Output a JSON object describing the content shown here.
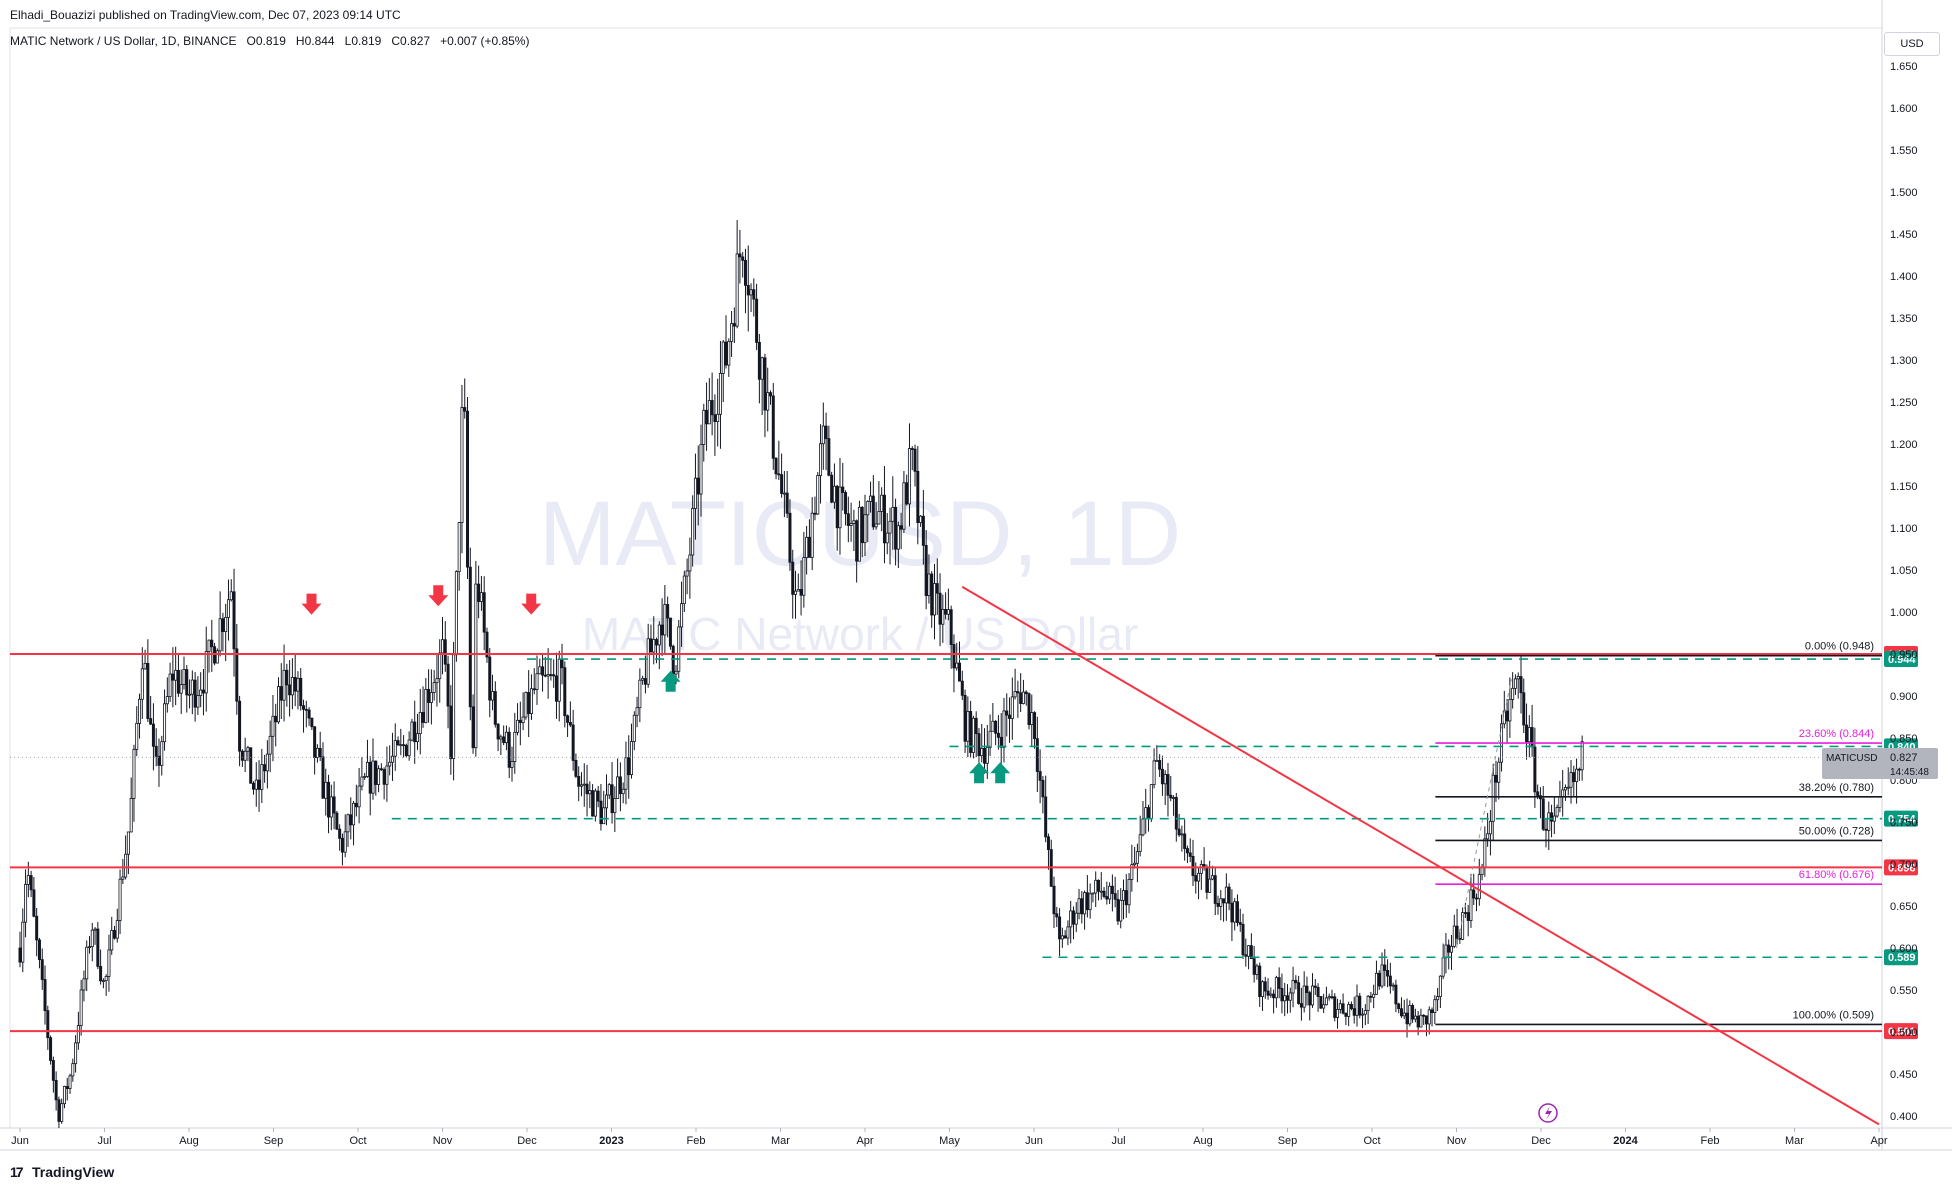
{
  "header": {
    "published": "Elhadi_Bouazizi published on TradingView.com, Dec 07, 2023 09:14 UTC"
  },
  "symbol": {
    "title": "MATIC Network / US Dollar, 1D, BINANCE",
    "o_label": "O",
    "o": "0.819",
    "h_label": "H",
    "h": "0.844",
    "l_label": "L",
    "l": "0.819",
    "c_label": "C",
    "c": "0.827",
    "change": "+0.007 (+0.85%)"
  },
  "watermark": {
    "line1": "MATICUSD, 1D",
    "line2": "MATIC Network / US Dollar"
  },
  "currency": "USD",
  "price_tag": {
    "symbol": "MATICUSD",
    "price": "0.827",
    "countdown": "14:45:48"
  },
  "brand": {
    "name": "TradingView",
    "mark": "17"
  },
  "colors": {
    "support_resistance": "#f23645",
    "dashed_levels": "#089981",
    "fib_magenta": "#e91ee0",
    "candle": "#131722",
    "arrow_down": "#f23645",
    "arrow_up": "#089981"
  },
  "chart_data": {
    "type": "candlestick",
    "symbol": "MATICUSD",
    "timeframe": "1D",
    "exchange": "BINANCE",
    "ylim": [
      0.385,
      1.68
    ],
    "y_ticks": [
      "0.400",
      "0.450",
      "0.500",
      "0.550",
      "0.600",
      "0.650",
      "0.700",
      "0.750",
      "0.800",
      "0.850",
      "0.900",
      "0.950",
      "1.000",
      "1.050",
      "1.100",
      "1.150",
      "1.200",
      "1.250",
      "1.300",
      "1.350",
      "1.400",
      "1.450",
      "1.500",
      "1.550",
      "1.600",
      "1.650"
    ],
    "x_ticks": [
      {
        "label": "Jun",
        "m": 0.0
      },
      {
        "label": "Jul",
        "m": 1.0
      },
      {
        "label": "Aug",
        "m": 2.0
      },
      {
        "label": "Sep",
        "m": 3.0
      },
      {
        "label": "Oct",
        "m": 4.0
      },
      {
        "label": "Nov",
        "m": 5.0
      },
      {
        "label": "Dec",
        "m": 6.0
      },
      {
        "label": "2023",
        "m": 7.0
      },
      {
        "label": "Feb",
        "m": 8.0
      },
      {
        "label": "Mar",
        "m": 9.0
      },
      {
        "label": "Apr",
        "m": 10.0
      },
      {
        "label": "May",
        "m": 11.0
      },
      {
        "label": "Jun",
        "m": 12.0
      },
      {
        "label": "Jul",
        "m": 13.0
      },
      {
        "label": "Aug",
        "m": 14.0
      },
      {
        "label": "Sep",
        "m": 15.0
      },
      {
        "label": "Oct",
        "m": 16.0
      },
      {
        "label": "Nov",
        "m": 17.0
      },
      {
        "label": "Dec",
        "m": 18.0
      },
      {
        "label": "2024",
        "m": 19.0
      },
      {
        "label": "Feb",
        "m": 20.0
      },
      {
        "label": "Mar",
        "m": 21.0
      },
      {
        "label": "Apr",
        "m": 22.0
      }
    ],
    "price_anchors": [
      [
        0.0,
        0.6
      ],
      [
        0.08,
        0.7
      ],
      [
        0.25,
        0.56
      ],
      [
        0.45,
        0.4
      ],
      [
        0.6,
        0.45
      ],
      [
        0.85,
        0.63
      ],
      [
        1.0,
        0.55
      ],
      [
        1.3,
        0.75
      ],
      [
        1.45,
        0.96
      ],
      [
        1.6,
        0.8
      ],
      [
        1.8,
        0.93
      ],
      [
        2.0,
        0.9
      ],
      [
        2.2,
        0.93
      ],
      [
        2.5,
        1.03
      ],
      [
        2.6,
        0.85
      ],
      [
        2.8,
        0.78
      ],
      [
        3.0,
        0.86
      ],
      [
        3.15,
        0.93
      ],
      [
        3.3,
        0.9
      ],
      [
        3.6,
        0.79
      ],
      [
        3.8,
        0.72
      ],
      [
        4.1,
        0.8
      ],
      [
        4.5,
        0.83
      ],
      [
        4.8,
        0.9
      ],
      [
        5.0,
        0.95
      ],
      [
        5.1,
        0.84
      ],
      [
        5.25,
        1.28
      ],
      [
        5.35,
        0.78
      ],
      [
        5.4,
        1.05
      ],
      [
        5.6,
        0.88
      ],
      [
        5.8,
        0.83
      ],
      [
        6.1,
        0.91
      ],
      [
        6.4,
        0.92
      ],
      [
        6.6,
        0.8
      ],
      [
        6.9,
        0.76
      ],
      [
        7.2,
        0.82
      ],
      [
        7.4,
        0.93
      ],
      [
        7.6,
        1.0
      ],
      [
        7.75,
        0.94
      ],
      [
        7.9,
        1.05
      ],
      [
        8.1,
        1.22
      ],
      [
        8.35,
        1.3
      ],
      [
        8.55,
        1.45
      ],
      [
        8.65,
        1.38
      ],
      [
        8.8,
        1.28
      ],
      [
        9.0,
        1.15
      ],
      [
        9.2,
        1.0
      ],
      [
        9.5,
        1.2
      ],
      [
        9.7,
        1.12
      ],
      [
        9.9,
        1.09
      ],
      [
        10.1,
        1.12
      ],
      [
        10.4,
        1.1
      ],
      [
        10.55,
        1.18
      ],
      [
        10.7,
        1.05
      ],
      [
        10.85,
        1.0
      ],
      [
        11.0,
        0.98
      ],
      [
        11.2,
        0.86
      ],
      [
        11.4,
        0.84
      ],
      [
        11.6,
        0.86
      ],
      [
        11.85,
        0.91
      ],
      [
        12.0,
        0.87
      ],
      [
        12.15,
        0.72
      ],
      [
        12.3,
        0.6
      ],
      [
        12.5,
        0.65
      ],
      [
        12.8,
        0.67
      ],
      [
        13.0,
        0.64
      ],
      [
        13.2,
        0.7
      ],
      [
        13.45,
        0.82
      ],
      [
        13.6,
        0.78
      ],
      [
        13.8,
        0.7
      ],
      [
        14.0,
        0.68
      ],
      [
        14.3,
        0.66
      ],
      [
        14.5,
        0.6
      ],
      [
        14.7,
        0.55
      ],
      [
        15.0,
        0.55
      ],
      [
        15.3,
        0.54
      ],
      [
        15.6,
        0.53
      ],
      [
        15.9,
        0.53
      ],
      [
        16.1,
        0.57
      ],
      [
        16.4,
        0.52
      ],
      [
        16.6,
        0.51
      ],
      [
        16.75,
        0.53
      ],
      [
        16.9,
        0.6
      ],
      [
        17.1,
        0.64
      ],
      [
        17.3,
        0.69
      ],
      [
        17.45,
        0.8
      ],
      [
        17.6,
        0.88
      ],
      [
        17.72,
        0.92
      ],
      [
        17.85,
        0.85
      ],
      [
        18.0,
        0.76
      ],
      [
        18.15,
        0.74
      ],
      [
        18.3,
        0.78
      ],
      [
        18.45,
        0.81
      ],
      [
        18.5,
        0.83
      ]
    ],
    "horizontal_levels": [
      {
        "price": 0.95,
        "style": "solid",
        "color": "red",
        "tag": "0.950"
      },
      {
        "price": 0.696,
        "style": "solid",
        "color": "red",
        "tag": "0.696"
      },
      {
        "price": 0.501,
        "style": "solid",
        "color": "red",
        "tag": "0.501"
      },
      {
        "price": 0.944,
        "style": "dashed",
        "color": "teal",
        "tag": "0.944",
        "from_m": 6.0
      },
      {
        "price": 0.84,
        "style": "dashed",
        "color": "teal",
        "tag": "0.840",
        "from_m": 11.0
      },
      {
        "price": 0.754,
        "style": "dashed",
        "color": "teal",
        "tag": "0.754",
        "from_m": 4.4
      },
      {
        "price": 0.589,
        "style": "dashed",
        "color": "teal",
        "tag": "0.589",
        "from_m": 12.1
      }
    ],
    "trendline": {
      "from": [
        11.15,
        1.03
      ],
      "to": [
        22.0,
        0.39
      ]
    },
    "fibonacci": {
      "from_m": 16.75,
      "levels": [
        {
          "label": "0.00% (0.948)",
          "price": 0.948,
          "color": "black"
        },
        {
          "label": "23.60% (0.844)",
          "price": 0.844,
          "color": "magenta"
        },
        {
          "label": "38.20% (0.780)",
          "price": 0.78,
          "color": "black"
        },
        {
          "label": "50.00% (0.728)",
          "price": 0.728,
          "color": "black"
        },
        {
          "label": "61.80% (0.676)",
          "price": 0.676,
          "color": "magenta"
        },
        {
          "label": "100.00% (0.509)",
          "price": 0.509,
          "color": "black"
        }
      ]
    },
    "arrows": [
      {
        "dir": "down",
        "m": 3.45,
        "price": 1.01
      },
      {
        "dir": "down",
        "m": 4.95,
        "price": 1.02
      },
      {
        "dir": "down",
        "m": 6.05,
        "price": 1.01
      },
      {
        "dir": "up",
        "m": 7.7,
        "price": 0.917
      },
      {
        "dir": "up",
        "m": 11.35,
        "price": 0.808
      },
      {
        "dir": "up",
        "m": 11.6,
        "price": 0.808
      }
    ]
  }
}
